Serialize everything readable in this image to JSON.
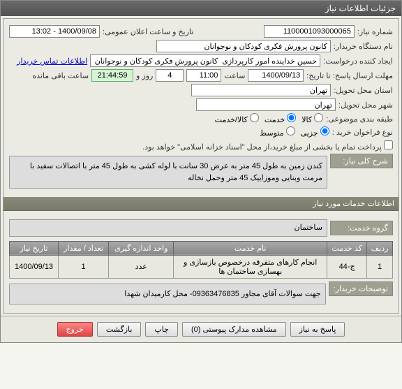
{
  "window": {
    "title": "جزئیات اطلاعات نیاز"
  },
  "form": {
    "req_no_label": "شماره نیاز:",
    "req_no_value": "1100001093000065",
    "announce_label": "تاریخ و ساعت اعلان عمومی:",
    "announce_value": "1400/09/08 - 13:02",
    "buyer_org_label": "نام دستگاه خریدار:",
    "buyer_org_value": "کانون پرورش فکری کودکان و نوجوانان",
    "creator_label": "ایجاد کننده درخواست:",
    "creator_value": "حسین خداینده امور کارپردازی  کانون پرورش فکری کودکان و نوجوانان",
    "contact_link": "اطلاعات تماس خریدار",
    "deadline_label": "مهلت ارسال پاسخ: تا تاریخ:",
    "deadline_date": "1400/09/13",
    "time_label": "ساعت",
    "deadline_time": "11:00",
    "days_remaining": "4",
    "days_label": "روز و",
    "countdown": "21:44:59",
    "countdown_label": "ساعت باقی مانده",
    "delivery_prov_label": "استان محل تحویل:",
    "delivery_prov_value": "تهران",
    "delivery_city_label": "شهر محل تحویل:",
    "delivery_city_value": "تهران",
    "category_label": "طبقه بندی موضوعی:",
    "cat_goods": "کالا",
    "cat_service": "خدمت",
    "cat_both": "کالا/خدمت",
    "purchase_type_label": "نوع فراخوان خرید :",
    "pt_partial": "جزیی",
    "pt_medium": "متوسط",
    "payment_note": "پرداخت تمام یا بخشی از مبلغ خرید،از محل \"اسناد خزانه اسلامی\" خواهد بود.",
    "main_desc_label": "شرح کلی نیاز:",
    "main_desc_value": "کندن زمین به طول 45 متر به عرض 30 سانت با لوله کشی به طول 45 متر با اتصالات سفید با مرمت وبنایی وموزاییک 45 متر وحمل نخاله"
  },
  "services": {
    "header": "اطلاعات خدمات مورد نیاز",
    "group_label": "گروه خدمت:",
    "group_value": "ساختمان",
    "columns": {
      "row": "ردیف",
      "code": "کد خدمت",
      "name": "نام خدمت",
      "unit": "واحد اندازه گیری",
      "qty": "تعداد / مقدار",
      "date": "تاریخ نیاز"
    },
    "rows": [
      {
        "row": "1",
        "code": "ج-44",
        "name": "انجام کارهای متفرقه درخصوص بازسازی و بهسازی ساختمان ها",
        "unit": "عدد",
        "qty": "1",
        "date": "1400/09/13"
      }
    ],
    "buyer_notes_label": "توضیحات خریدار:",
    "buyer_notes_value": "جهت سوالات آقای مجاور 09363476835- محل کارمیدان شهدا"
  },
  "buttons": {
    "reply": "پاسخ به نیاز",
    "attachments": "مشاهده مدارک پیوستی (0)",
    "print": "چاپ",
    "back": "بازگشت",
    "exit": "خروج"
  },
  "colors": {
    "countdown_bg": "#d4f4d4",
    "header_bg": "#7a7a6a"
  }
}
